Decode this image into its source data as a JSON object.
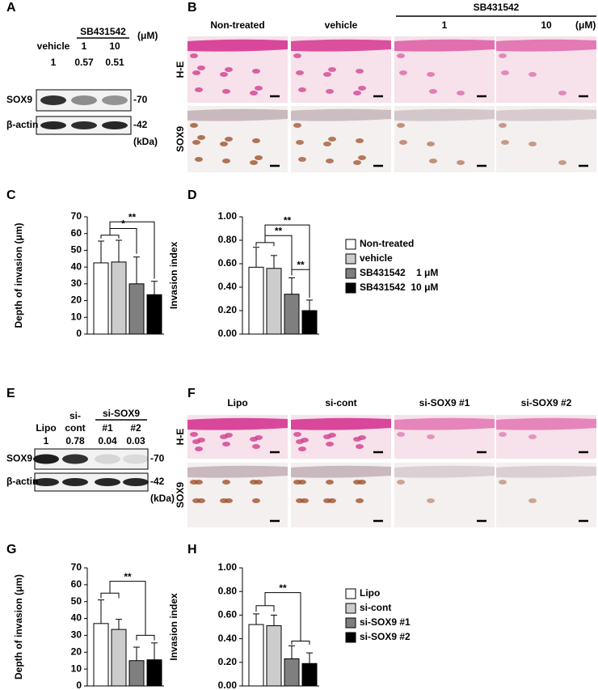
{
  "blots": [
    {
      "panel": "A",
      "group": "SB431542",
      "unit": "(μM)",
      "lanes": [
        [
          "vehicle"
        ],
        [
          "1"
        ],
        [
          "10"
        ]
      ],
      "ratios": [
        "1",
        "0.57",
        "0.51"
      ],
      "rows": [
        {
          "name": "SOX9",
          "marker": "-70"
        },
        {
          "name": "β-actin",
          "marker": "-42"
        }
      ],
      "marker_unit": "(kDa)"
    },
    {
      "panel": "E",
      "group": "si-SOX9",
      "lanes": [
        [
          "Lipo"
        ],
        [
          "si-",
          "cont"
        ],
        [
          "#1"
        ],
        [
          "#2"
        ]
      ],
      "ratios": [
        "1",
        "0.78",
        "0.04",
        "0.03"
      ],
      "rows": [
        {
          "name": "SOX9",
          "marker": "-70"
        },
        {
          "name": "β-actin",
          "marker": "-42"
        }
      ],
      "marker_unit": "(kDa)"
    }
  ],
  "histology": [
    {
      "panel": "B",
      "group": "SB431542",
      "unit": "(μM)",
      "columns": [
        "Non-treated",
        "vehicle",
        "1",
        "10"
      ],
      "rows": [
        "H-E",
        "SOX9"
      ]
    },
    {
      "panel": "F",
      "columns": [
        "Lipo",
        "si-cont",
        "si-SOX9 #1",
        "si-SOX9 #2"
      ],
      "rows": [
        "H-E",
        "SOX9"
      ]
    }
  ],
  "chart_data": [
    {
      "type": "bar",
      "panel": "C",
      "ylabel": "Depth of invasion (μm)",
      "categories": [
        null
      ],
      "ylim": [
        0,
        70
      ],
      "yticks": [
        0,
        10,
        20,
        30,
        40,
        50,
        60,
        70
      ],
      "significance": [
        "*",
        "**"
      ],
      "series": [
        {
          "color": "#ffffff",
          "values": [
            42.5
          ],
          "errors": [
            13
          ]
        },
        {
          "color": "#cccccc",
          "values": [
            43
          ],
          "errors": [
            13
          ]
        },
        {
          "color": "#7f7f7f",
          "values": [
            30
          ],
          "errors": [
            16
          ]
        },
        {
          "color": "#000000",
          "values": [
            23.5
          ],
          "errors": [
            8
          ]
        }
      ]
    },
    {
      "type": "bar",
      "panel": "D",
      "ylabel": "Invasion index",
      "categories": [
        null
      ],
      "ylim": [
        0,
        1
      ],
      "yticks": [
        {
          "value": 0,
          "label": "0.00"
        },
        {
          "value": 0.2,
          "label": "0.20"
        },
        {
          "value": 0.4,
          "label": "0.40"
        },
        {
          "value": 0.6,
          "label": "0.60"
        },
        {
          "value": 0.8,
          "label": "0.80"
        },
        {
          "value": 1,
          "label": "1.00"
        }
      ],
      "significance": [
        "**",
        "**",
        "**"
      ],
      "legend": "right",
      "series": [
        {
          "name": "Non-treated",
          "color": "#ffffff",
          "values": [
            0.57
          ],
          "errors": [
            0.17
          ]
        },
        {
          "name": "vehicle",
          "color": "#cccccc",
          "values": [
            0.56
          ],
          "errors": [
            0.11
          ]
        },
        {
          "name": "SB431542    1 μM",
          "color": "#7f7f7f",
          "values": [
            0.34
          ],
          "errors": [
            0.14
          ]
        },
        {
          "name": "SB431542  10 μM",
          "color": "#000000",
          "values": [
            0.2
          ],
          "errors": [
            0.09
          ]
        }
      ]
    },
    {
      "type": "bar",
      "panel": "G",
      "ylabel": "Depth of invasion (μm)",
      "categories": [
        null
      ],
      "ylim": [
        0,
        70
      ],
      "yticks": [
        0,
        10,
        20,
        30,
        40,
        50,
        60,
        70
      ],
      "significance": [
        "**"
      ],
      "series": [
        {
          "color": "#ffffff",
          "values": [
            37
          ],
          "errors": [
            14
          ]
        },
        {
          "color": "#cccccc",
          "values": [
            33.5
          ],
          "errors": [
            6
          ]
        },
        {
          "color": "#7f7f7f",
          "values": [
            15
          ],
          "errors": [
            8
          ]
        },
        {
          "color": "#000000",
          "values": [
            15.5
          ],
          "errors": [
            10
          ]
        }
      ]
    },
    {
      "type": "bar",
      "panel": "H",
      "ylabel": "Invasion index",
      "categories": [
        null
      ],
      "ylim": [
        0,
        1
      ],
      "yticks": [
        {
          "value": 0,
          "label": "0.00"
        },
        {
          "value": 0.2,
          "label": "0.20"
        },
        {
          "value": 0.4,
          "label": "0.40"
        },
        {
          "value": 0.6,
          "label": "0.60"
        },
        {
          "value": 0.8,
          "label": "0.80"
        },
        {
          "value": 1,
          "label": "1.00"
        }
      ],
      "significance": [
        "**"
      ],
      "legend": "right",
      "series": [
        {
          "name": "Lipo",
          "color": "#ffffff",
          "values": [
            0.52
          ],
          "errors": [
            0.09
          ]
        },
        {
          "name": "si-cont",
          "color": "#cccccc",
          "values": [
            0.51
          ],
          "errors": [
            0.09
          ]
        },
        {
          "name": "si-SOX9 #1",
          "color": "#7f7f7f",
          "values": [
            0.23
          ],
          "errors": [
            0.11
          ]
        },
        {
          "name": "si-SOX9 #2",
          "color": "#000000",
          "values": [
            0.19
          ],
          "errors": [
            0.09
          ]
        }
      ]
    }
  ]
}
